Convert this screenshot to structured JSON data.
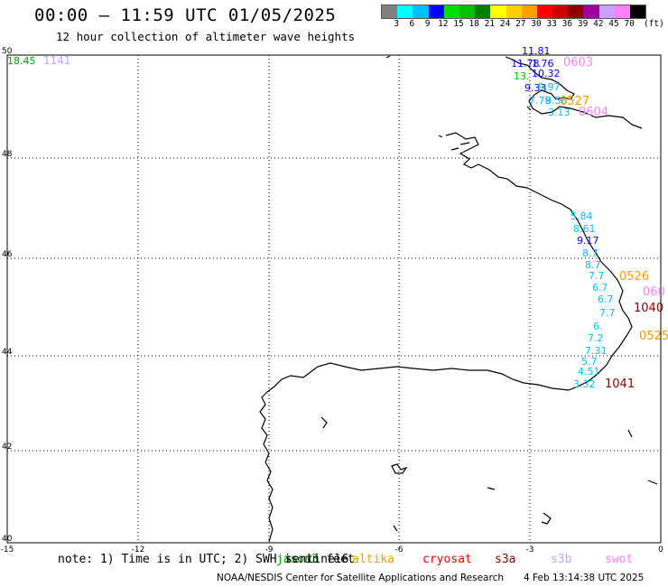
{
  "header": {
    "title": "00:00 – 11:59 UTC 01/05/2025",
    "subtitle": "12 hour collection of altimeter wave heights"
  },
  "colorbar": {
    "unit_label": "(ft)",
    "labels": [
      "3",
      "6",
      "9",
      "12",
      "15",
      "18",
      "21",
      "24",
      "27",
      "30",
      "33",
      "36",
      "39",
      "42",
      "45",
      "70"
    ],
    "colors": [
      "#808080",
      "#00ffff",
      "#00bfff",
      "#0000ff",
      "#00e000",
      "#00c000",
      "#008000",
      "#ffff00",
      "#ffd000",
      "#ffa000",
      "#ff0000",
      "#d00000",
      "#900000",
      "#a000a0",
      "#c8a0ff",
      "#ff80ff",
      "#000000"
    ]
  },
  "axes": {
    "lat_labels": [
      "50",
      "48",
      "46",
      "44",
      "42",
      "40"
    ],
    "lon_labels": [
      "-15",
      "-12",
      "-9",
      "-6",
      "-3",
      "0"
    ]
  },
  "corner_labels": [
    {
      "text": "18.45",
      "color": "#00a000"
    },
    {
      "text": "1141",
      "color": "#c8a0ff"
    }
  ],
  "wave_readings": [
    {
      "text": "11.81",
      "color": "#0000ff"
    },
    {
      "text": "11.78",
      "color": "#0000ff"
    },
    {
      "text": "1.76",
      "color": "#0000ff"
    },
    {
      "text": "0603",
      "color": "#ff80ff"
    },
    {
      "text": "10.32",
      "color": "#0000ff"
    },
    {
      "text": "13.",
      "color": "#00c000"
    },
    {
      "text": "9.33",
      "color": "#0000ff"
    },
    {
      "text": "9.97",
      "color": "#00bfff"
    },
    {
      "text": "7.79",
      "color": "#00bfff"
    },
    {
      "text": "8.56",
      "color": "#00bfff"
    },
    {
      "text": "0527",
      "color": "#ff9900"
    },
    {
      "text": "3.13",
      "color": "#00bfff"
    },
    {
      "text": "0604",
      "color": "#ff80ff"
    },
    {
      "text": "5.84",
      "color": "#00bfff"
    },
    {
      "text": "8.61",
      "color": "#00bfff"
    },
    {
      "text": "9.17",
      "color": "#0000ff"
    },
    {
      "text": "8.7",
      "color": "#00bfff"
    },
    {
      "text": "8.7",
      "color": "#00bfff"
    },
    {
      "text": "7.7",
      "color": "#00bfff"
    },
    {
      "text": "0526",
      "color": "#ff9900"
    },
    {
      "text": "6.7",
      "color": "#00bfff"
    },
    {
      "text": "060",
      "color": "#ff80ff"
    },
    {
      "text": "6.7",
      "color": "#00bfff"
    },
    {
      "text": "1040",
      "color": "#900000"
    },
    {
      "text": "7.7",
      "color": "#00bfff"
    },
    {
      "text": "6.",
      "color": "#00bfff"
    },
    {
      "text": "0525",
      "color": "#ff9900"
    },
    {
      "text": "7.2",
      "color": "#00bfff"
    },
    {
      "text": "7.31",
      "color": "#00bfff"
    },
    {
      "text": "5.7",
      "color": "#00bfff"
    },
    {
      "text": "4.51",
      "color": "#00bfff"
    },
    {
      "text": "3.32",
      "color": "#00bfff"
    },
    {
      "text": "1041",
      "color": "#900000"
    }
  ],
  "legend": [
    {
      "name": "jason3",
      "color": "#00a000"
    },
    {
      "name": "sentinel6",
      "color": "#000000"
    },
    {
      "name": "altika",
      "color": "#ff9900"
    },
    {
      "name": "cryosat",
      "color": "#ff0000"
    },
    {
      "name": "s3a",
      "color": "#900000"
    },
    {
      "name": "s3b",
      "color": "#c8a0ff"
    },
    {
      "name": "swot",
      "color": "#ff80ff"
    }
  ],
  "footer": {
    "note": "note: 1) Time is in UTC; 2) SWH is in feet",
    "credit": "NOAA/NESDIS Center for Satellite Applications and Research",
    "timestamp": "4 Feb 13:14:38 UTC 2025"
  }
}
